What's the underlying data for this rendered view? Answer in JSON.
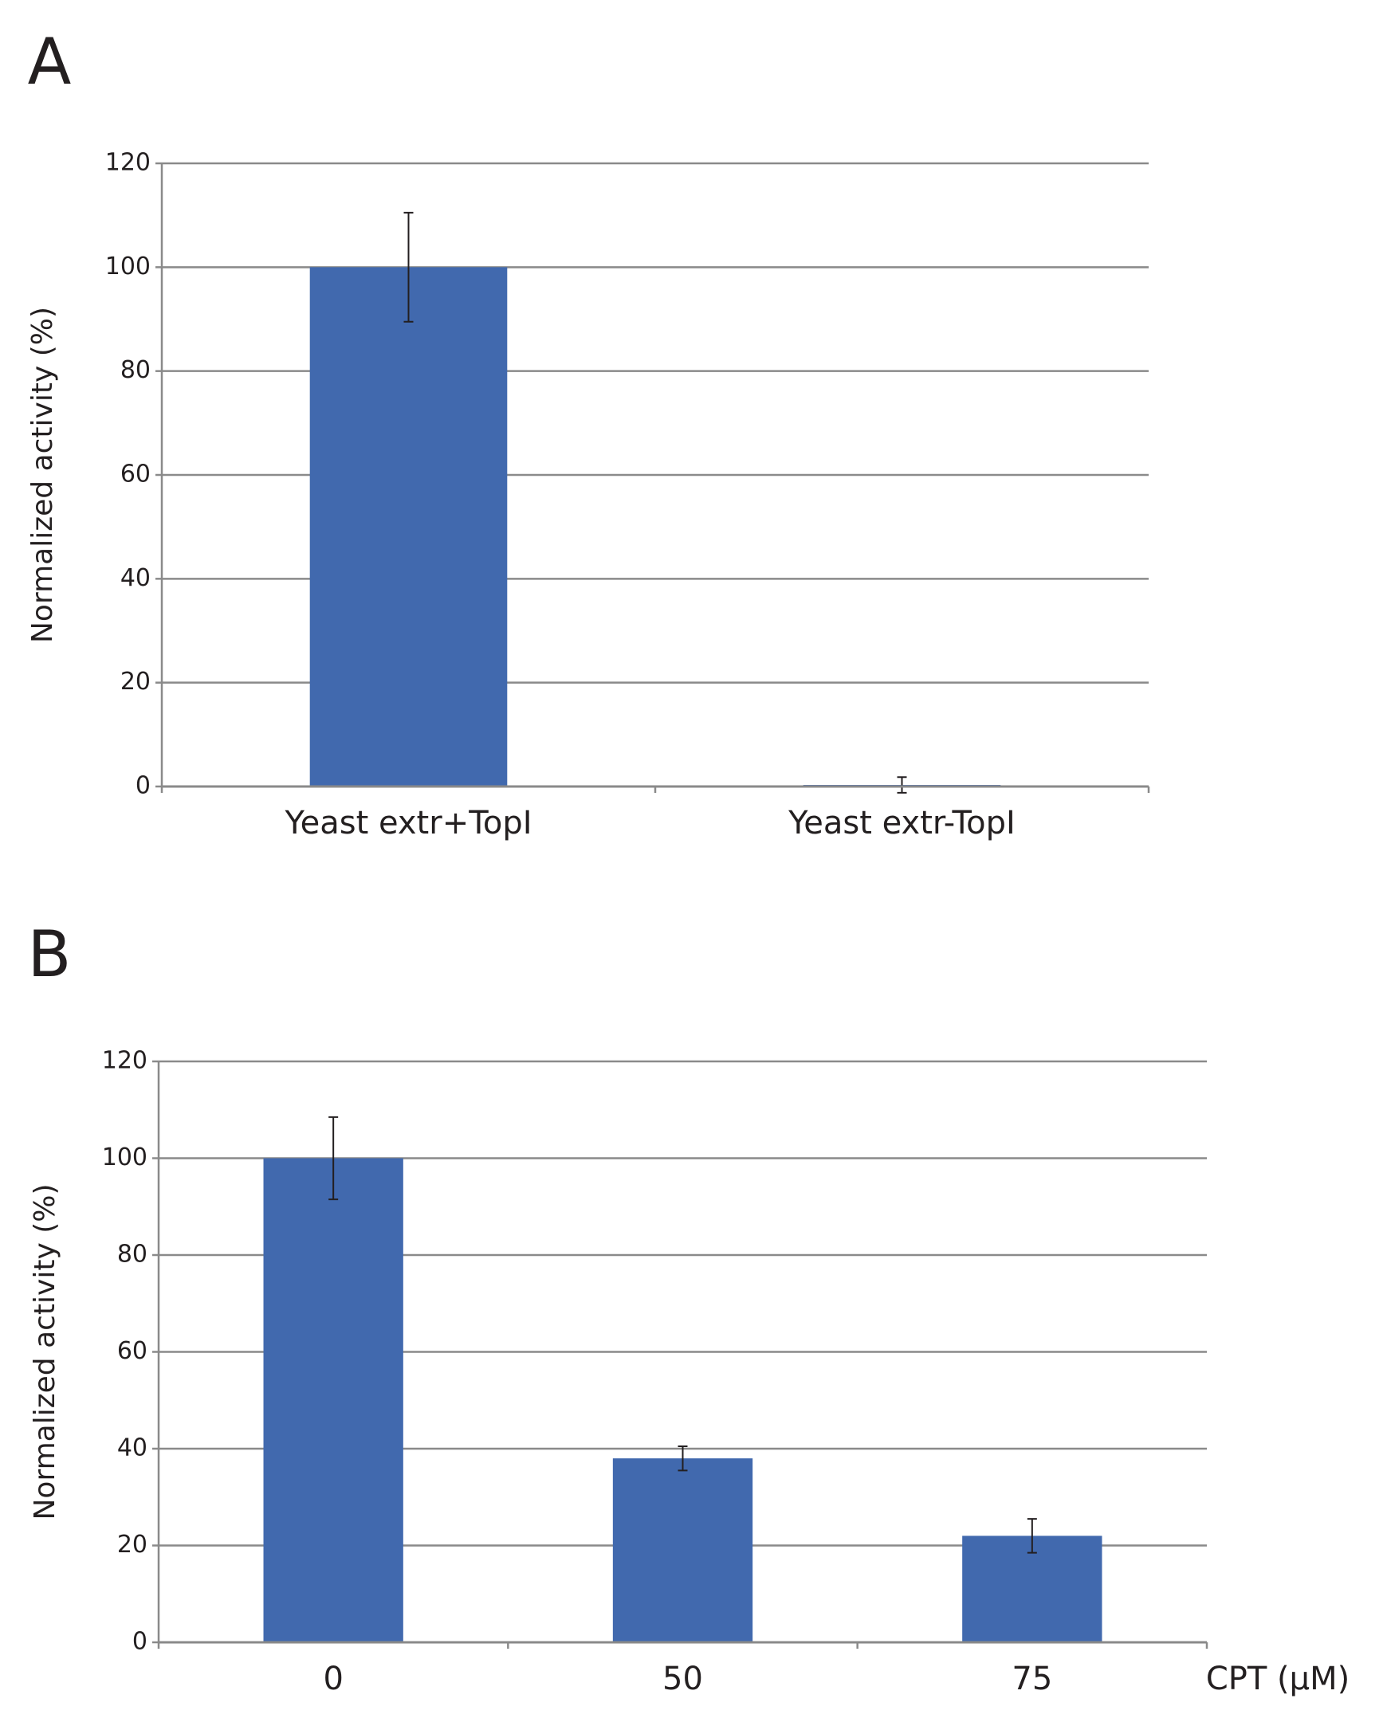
{
  "chart_data": [
    {
      "type": "bar",
      "panel": "A",
      "y_label": "Normalized activity (%)",
      "categories": [
        "Yeast extr+TopI",
        "Yeast extr-TopI"
      ],
      "values": [
        100,
        0.3
      ],
      "errors": [
        10.5,
        1.5
      ],
      "color": "#4169ae",
      "ylim": [
        0,
        120
      ],
      "yticks": [
        0,
        20,
        40,
        60,
        80,
        100,
        120
      ],
      "grid": true
    },
    {
      "type": "bar",
      "panel": "B",
      "y_label": "Normalized activity (%)",
      "x_label": "CPT (µM)",
      "categories": [
        "0",
        "50",
        "75"
      ],
      "values": [
        100,
        38,
        22
      ],
      "errors": [
        8.5,
        2.5,
        3.5
      ],
      "color": "#4169ae",
      "ylim": [
        0,
        120
      ],
      "yticks": [
        0,
        20,
        40,
        60,
        80,
        100,
        120
      ],
      "grid": true
    }
  ]
}
